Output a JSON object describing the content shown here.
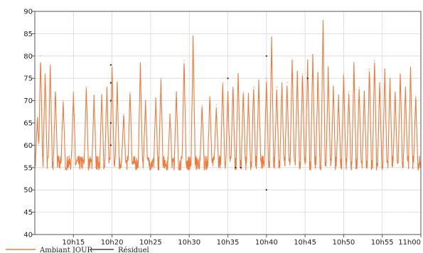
{
  "chart_data": {
    "type": "line",
    "title": "",
    "xlabel": "",
    "ylabel": "",
    "ylim": [
      40,
      90
    ],
    "yticks": [
      "40",
      "45",
      "50",
      "55",
      "60",
      "65",
      "70",
      "75",
      "80",
      "85",
      "90"
    ],
    "xlim": [
      "10:10",
      "11:00"
    ],
    "xticks": [
      {
        "t": "10:15",
        "label": "10h15"
      },
      {
        "t": "10:20",
        "label": "10h20"
      },
      {
        "t": "10:25",
        "label": "10h25"
      },
      {
        "t": "10:30",
        "label": "10h30"
      },
      {
        "t": "10:35",
        "label": "10h35"
      },
      {
        "t": "10:40",
        "label": "10h40"
      },
      {
        "t": "10:45",
        "label": "10h45"
      },
      {
        "t": "10:50",
        "label": "10h50"
      },
      {
        "t": "10:55",
        "label": "10h55"
      },
      {
        "t": "11:00",
        "label": "11h00"
      }
    ],
    "grid": true,
    "legend_position": "bottom-left",
    "series": [
      {
        "name": "Ambiant JOUR",
        "color": "#f07a3c",
        "baseline": 56,
        "peaks": [
          {
            "t": "10:10:20",
            "y": 66
          },
          {
            "t": "10:10:45",
            "y": 80
          },
          {
            "t": "10:11:20",
            "y": 76
          },
          {
            "t": "10:12:00",
            "y": 78
          },
          {
            "t": "10:12:40",
            "y": 72
          },
          {
            "t": "10:13:40",
            "y": 70
          },
          {
            "t": "10:15:00",
            "y": 72
          },
          {
            "t": "10:16:40",
            "y": 73
          },
          {
            "t": "10:17:40",
            "y": 71
          },
          {
            "t": "10:18:40",
            "y": 71
          },
          {
            "t": "10:19:20",
            "y": 73
          },
          {
            "t": "10:20:00",
            "y": 78
          },
          {
            "t": "10:20:40",
            "y": 74
          },
          {
            "t": "10:21:30",
            "y": 67
          },
          {
            "t": "10:22:20",
            "y": 72
          },
          {
            "t": "10:23:40",
            "y": 78
          },
          {
            "t": "10:24:20",
            "y": 70
          },
          {
            "t": "10:25:40",
            "y": 70
          },
          {
            "t": "10:26:20",
            "y": 75
          },
          {
            "t": "10:27:30",
            "y": 67
          },
          {
            "t": "10:28:20",
            "y": 72
          },
          {
            "t": "10:29:20",
            "y": 79
          },
          {
            "t": "10:30:30",
            "y": 84
          },
          {
            "t": "10:31:40",
            "y": 69
          },
          {
            "t": "10:32:40",
            "y": 71
          },
          {
            "t": "10:33:30",
            "y": 69
          },
          {
            "t": "10:34:20",
            "y": 74
          },
          {
            "t": "10:35:00",
            "y": 72
          },
          {
            "t": "10:35:40",
            "y": 73
          },
          {
            "t": "10:36:20",
            "y": 76
          },
          {
            "t": "10:37:00",
            "y": 72
          },
          {
            "t": "10:37:40",
            "y": 71
          },
          {
            "t": "10:38:20",
            "y": 73
          },
          {
            "t": "10:39:00",
            "y": 74
          },
          {
            "t": "10:40:00",
            "y": 75
          },
          {
            "t": "10:40:40",
            "y": 84
          },
          {
            "t": "10:41:20",
            "y": 73
          },
          {
            "t": "10:42:00",
            "y": 74
          },
          {
            "t": "10:42:40",
            "y": 74
          },
          {
            "t": "10:43:20",
            "y": 79
          },
          {
            "t": "10:44:00",
            "y": 76
          },
          {
            "t": "10:44:40",
            "y": 76
          },
          {
            "t": "10:45:20",
            "y": 79
          },
          {
            "t": "10:46:00",
            "y": 80
          },
          {
            "t": "10:46:40",
            "y": 76
          },
          {
            "t": "10:47:20",
            "y": 88
          },
          {
            "t": "10:48:00",
            "y": 77
          },
          {
            "t": "10:48:40",
            "y": 73
          },
          {
            "t": "10:49:20",
            "y": 71
          },
          {
            "t": "10:50:00",
            "y": 76
          },
          {
            "t": "10:50:40",
            "y": 72
          },
          {
            "t": "10:51:20",
            "y": 78
          },
          {
            "t": "10:52:00",
            "y": 73
          },
          {
            "t": "10:52:40",
            "y": 72
          },
          {
            "t": "10:53:20",
            "y": 77
          },
          {
            "t": "10:54:00",
            "y": 79
          },
          {
            "t": "10:54:40",
            "y": 74
          },
          {
            "t": "10:55:20",
            "y": 77
          },
          {
            "t": "10:56:00",
            "y": 75
          },
          {
            "t": "10:56:40",
            "y": 72
          },
          {
            "t": "10:57:20",
            "y": 76
          },
          {
            "t": "10:58:00",
            "y": 73
          },
          {
            "t": "10:58:40",
            "y": 77
          },
          {
            "t": "10:59:20",
            "y": 71
          }
        ]
      },
      {
        "name": "Résiduel",
        "color": "#222222",
        "points": [
          {
            "t": "10:19:50",
            "y": 78
          },
          {
            "t": "10:19:50",
            "y": 74
          },
          {
            "t": "10:19:50",
            "y": 70
          },
          {
            "t": "10:19:50",
            "y": 65
          },
          {
            "t": "10:19:50",
            "y": 60
          },
          {
            "t": "10:35:00",
            "y": 75
          },
          {
            "t": "10:36:00",
            "y": 55
          },
          {
            "t": "10:36:40",
            "y": 55
          },
          {
            "t": "10:40:00",
            "y": 80
          },
          {
            "t": "10:40:00",
            "y": 50
          },
          {
            "t": "10:45:20",
            "y": 75
          }
        ]
      }
    ]
  }
}
